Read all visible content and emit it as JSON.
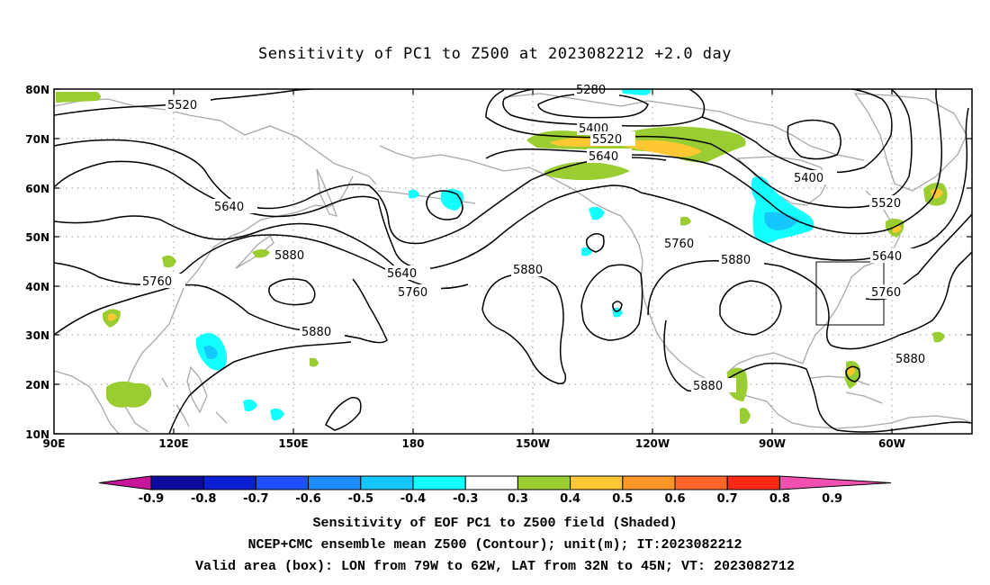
{
  "title": "Sensitivity of PC1 to Z500 at 2023082212 +2.0 day",
  "map": {
    "lon_labels": [
      "90E",
      "120E",
      "150E",
      "180",
      "150W",
      "120W",
      "90W",
      "60W"
    ],
    "lat_labels": [
      "80N",
      "70N",
      "60N",
      "50N",
      "40N",
      "30N",
      "20N",
      "10N"
    ],
    "contour_labels": [
      {
        "text": "5520"
      },
      {
        "text": "5640"
      },
      {
        "text": "5760"
      },
      {
        "text": "5880"
      },
      {
        "text": "5880"
      },
      {
        "text": "5640"
      },
      {
        "text": "5760"
      },
      {
        "text": "5880"
      },
      {
        "text": "5280"
      },
      {
        "text": "5400"
      },
      {
        "text": "5520"
      },
      {
        "text": "5640"
      },
      {
        "text": "5760"
      },
      {
        "text": "5880"
      },
      {
        "text": "5400"
      },
      {
        "text": "5520"
      },
      {
        "text": "5640"
      },
      {
        "text": "5760"
      },
      {
        "text": "5880"
      },
      {
        "text": "5880"
      }
    ],
    "valid_box": {
      "lon_from": "79W",
      "lon_to": "62W",
      "lat_from": "32N",
      "lat_to": "45N"
    }
  },
  "colorbar": {
    "labels": [
      "-0.9",
      "-0.8",
      "-0.7",
      "-0.6",
      "-0.5",
      "-0.4",
      "-0.3",
      "0.3",
      "0.4",
      "0.5",
      "0.6",
      "0.7",
      "0.8",
      "0.9"
    ],
    "colors": [
      "#c8169a",
      "#0a0a9c",
      "#0a1ed2",
      "#1e50ff",
      "#1e8cff",
      "#14c8ff",
      "#14ffff",
      "#ffffff",
      "#9acd32",
      "#ffc832",
      "#ff9628",
      "#ff6428",
      "#ff2814",
      "#f050b0"
    ]
  },
  "captions": [
    "Sensitivity of EOF PC1 to Z500 field (Shaded)",
    "NCEP+CMC ensemble mean Z500 (Contour); unit(m); IT:2023082212",
    "Valid area (box): LON from 79W to 62W, LAT from 32N to 45N; VT: 2023082712"
  ]
}
